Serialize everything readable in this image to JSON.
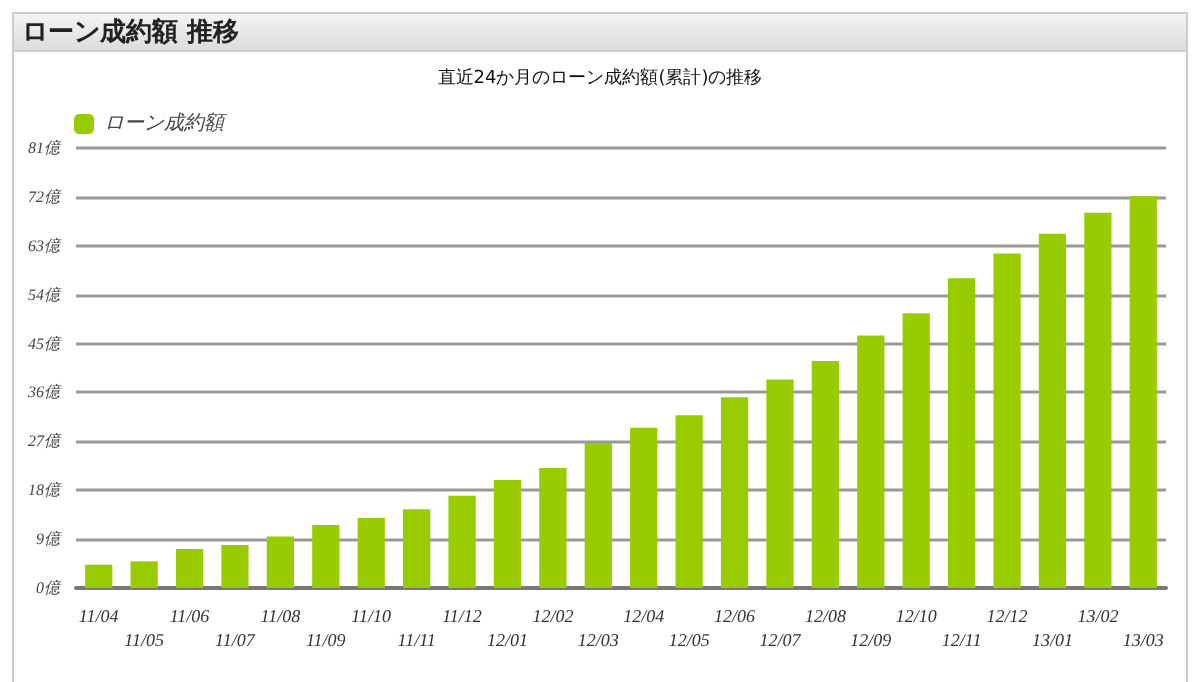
{
  "chart_data": {
    "type": "bar",
    "title": "ローン成約額 推移",
    "subtitle": "直近24か月のローン成約額(累計)の推移",
    "categories": [
      "11/04",
      "11/05",
      "11/06",
      "11/07",
      "11/08",
      "11/09",
      "11/10",
      "11/11",
      "11/12",
      "12/01",
      "12/02",
      "12/03",
      "12/04",
      "12/05",
      "12/06",
      "12/07",
      "12/08",
      "12/09",
      "12/10",
      "12/11",
      "12/12",
      "13/01",
      "13/02",
      "13/03"
    ],
    "series": [
      {
        "name": "ローン成約額",
        "color": "#99cc00",
        "values": [
          4.3,
          4.9,
          7.2,
          7.9,
          9.5,
          11.6,
          12.9,
          14.5,
          17.0,
          19.9,
          22.1,
          26.7,
          29.5,
          31.8,
          35.1,
          38.4,
          41.8,
          46.5,
          50.6,
          57.0,
          61.6,
          65.2,
          69.1,
          72.1
        ]
      }
    ],
    "ylim": [
      0,
      81
    ],
    "yticks": [
      {
        "value": 0,
        "label": "0億"
      },
      {
        "value": 9,
        "label": "9億"
      },
      {
        "value": 18,
        "label": "18億"
      },
      {
        "value": 27,
        "label": "27億"
      },
      {
        "value": 36,
        "label": "36億"
      },
      {
        "value": 45,
        "label": "45億"
      },
      {
        "value": 54,
        "label": "54億"
      },
      {
        "value": 63,
        "label": "63億"
      },
      {
        "value": 72,
        "label": "72億"
      },
      {
        "value": 81,
        "label": "81億"
      }
    ],
    "grid": "y",
    "legend": "top left"
  }
}
